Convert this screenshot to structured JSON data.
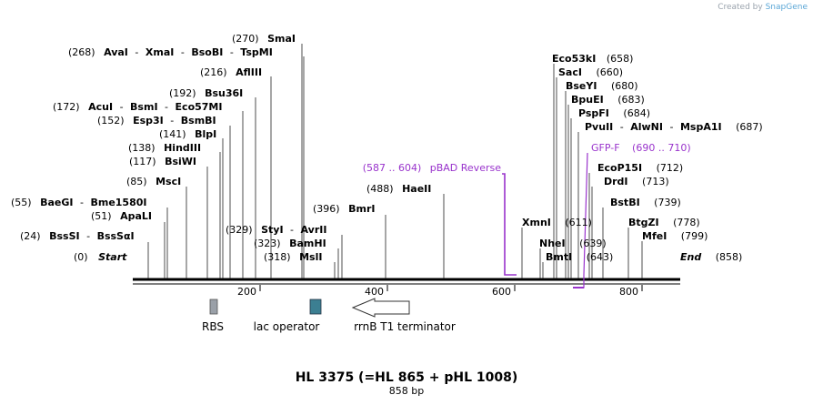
{
  "credit": {
    "created_by": "Created by",
    "brand": "SnapGene"
  },
  "title": "HL 3375 (=HL 865 + pHL 1008)",
  "subtitle": "858 bp",
  "colors": {
    "primer": "#9933cc",
    "rbs": "#9aa0a8",
    "lac": "#3c7f92",
    "line": "#000000"
  },
  "ends": {
    "start": {
      "pos": "(0)",
      "label": "Start"
    },
    "end": {
      "pos": "(858)",
      "label": "End"
    }
  },
  "ticks": [
    "200",
    "400",
    "600",
    "800"
  ],
  "sites_left": [
    {
      "pos": "(270)",
      "names": [
        "SmaI"
      ]
    },
    {
      "pos": "(268)",
      "names": [
        "AvaI",
        "XmaI",
        "BsoBI",
        "TspMI"
      ]
    },
    {
      "pos": "(216)",
      "names": [
        "AflIII"
      ]
    },
    {
      "pos": "(192)",
      "names": [
        "Bsu36I"
      ]
    },
    {
      "pos": "(172)",
      "names": [
        "AcuI",
        "BsmI",
        "Eco57MI"
      ]
    },
    {
      "pos": "(152)",
      "names": [
        "Esp3I",
        "BsmBI"
      ]
    },
    {
      "pos": "(141)",
      "names": [
        "BlpI"
      ]
    },
    {
      "pos": "(138)",
      "names": [
        "HindIII"
      ]
    },
    {
      "pos": "(117)",
      "names": [
        "BsiWI"
      ]
    },
    {
      "pos": "(85)",
      "names": [
        "MscI"
      ]
    },
    {
      "pos": "(55)",
      "names": [
        "BaeGI",
        "Bme1580I"
      ]
    },
    {
      "pos": "(51)",
      "names": [
        "ApaLI"
      ]
    },
    {
      "pos": "(24)",
      "names": [
        "BssSI",
        "BssSαI"
      ]
    },
    {
      "pos": "(329)",
      "names": [
        "StyI",
        "AvrII"
      ]
    },
    {
      "pos": "(323)",
      "names": [
        "BamHI"
      ]
    },
    {
      "pos": "(318)",
      "names": [
        "MslI"
      ]
    },
    {
      "pos": "(396)",
      "names": [
        "BmrI"
      ]
    },
    {
      "pos": "(488)",
      "names": [
        "HaeII"
      ]
    }
  ],
  "sites_right": [
    {
      "pos": "(658)",
      "names": [
        "Eco53kI"
      ]
    },
    {
      "pos": "(660)",
      "names": [
        "SacI"
      ]
    },
    {
      "pos": "(680)",
      "names": [
        "BseYI"
      ]
    },
    {
      "pos": "(683)",
      "names": [
        "BpuEI"
      ]
    },
    {
      "pos": "(684)",
      "names": [
        "PspFI"
      ]
    },
    {
      "pos": "(687)",
      "names": [
        "PvuII",
        "AlwNI",
        "MspA1I"
      ]
    },
    {
      "pos": "(712)",
      "names": [
        "EcoP15I"
      ]
    },
    {
      "pos": "(713)",
      "names": [
        "DrdI"
      ]
    },
    {
      "pos": "(739)",
      "names": [
        "BstBI"
      ]
    },
    {
      "pos": "(778)",
      "names": [
        "BtgZI"
      ]
    },
    {
      "pos": "(799)",
      "names": [
        "MfeI"
      ]
    },
    {
      "pos": "(611)",
      "names": [
        "XmnI"
      ]
    },
    {
      "pos": "(639)",
      "names": [
        "NheI"
      ]
    },
    {
      "pos": "(643)",
      "names": [
        "BmtI"
      ]
    }
  ],
  "primers": [
    {
      "name": "pBAD Reverse",
      "range": "(587 .. 604)"
    },
    {
      "name": "GFP-F",
      "range": "(690 .. 710)"
    }
  ],
  "features": [
    {
      "name": "RBS",
      "type": "rbs"
    },
    {
      "name": "lac operator",
      "type": "protein_bind"
    },
    {
      "name": "rrnB T1 terminator",
      "type": "terminator"
    }
  ]
}
